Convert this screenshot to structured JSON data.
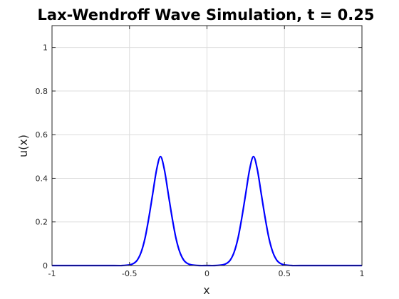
{
  "chart_data": {
    "type": "line",
    "title": "Lax-Wendroff Wave Simulation, t = 0.25",
    "xlabel": "x",
    "ylabel": "u(x)",
    "xlim": [
      -1,
      1
    ],
    "ylim": [
      0,
      1.1
    ],
    "xticks": [
      "-1",
      "-0.5",
      "0",
      "0.5",
      "1"
    ],
    "yticks": [
      "0",
      "0.2",
      "0.4",
      "0.6",
      "0.8",
      "1"
    ],
    "grid": true,
    "series": [
      {
        "color": "#0000ff",
        "x": [
          -1.0,
          -0.6,
          -0.55,
          -0.5,
          -0.475,
          -0.45,
          -0.425,
          -0.4,
          -0.375,
          -0.35,
          -0.325,
          -0.3,
          -0.275,
          -0.25,
          -0.225,
          -0.2,
          -0.175,
          -0.15,
          -0.125,
          -0.1,
          -0.05,
          0.0,
          0.05,
          0.1,
          0.125,
          0.15,
          0.175,
          0.2,
          0.225,
          0.25,
          0.275,
          0.3,
          0.325,
          0.35,
          0.375,
          0.4,
          0.425,
          0.45,
          0.475,
          0.5,
          0.55,
          0.6,
          1.0
        ],
        "y": [
          0.0,
          0.0,
          0.0,
          0.003,
          0.009,
          0.025,
          0.061,
          0.125,
          0.22,
          0.33,
          0.44,
          0.5,
          0.44,
          0.33,
          0.22,
          0.125,
          0.061,
          0.025,
          0.009,
          0.003,
          0.0,
          0.0,
          0.0,
          0.003,
          0.009,
          0.025,
          0.061,
          0.125,
          0.22,
          0.33,
          0.44,
          0.5,
          0.44,
          0.33,
          0.22,
          0.125,
          0.061,
          0.025,
          0.009,
          0.003,
          0.0,
          0.0,
          0.0
        ]
      }
    ]
  }
}
